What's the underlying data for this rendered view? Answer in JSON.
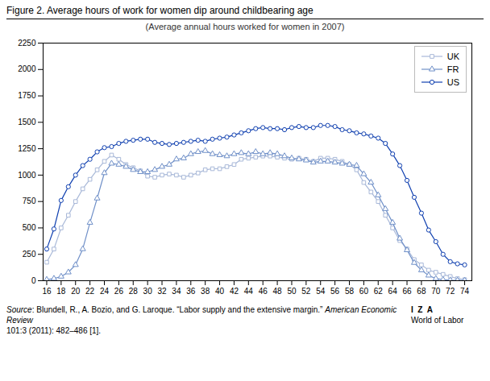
{
  "chart_data": {
    "type": "line",
    "title": "Figure 2. Average hours of work for women dip around childbearing age",
    "subtitle": "(Average annual hours worked for women in 2007)",
    "annotations": [
      "Source",
      ": Blundell, R., A. Bozio, and G. Laroque. “Labor supply and the extensive margin.” ",
      "American Economic Review",
      "101:3 (2011): 482–486 [1].",
      "I  Z  A",
      "World of Labor"
    ],
    "x": [
      16,
      17,
      18,
      19,
      20,
      21,
      22,
      23,
      24,
      25,
      26,
      27,
      28,
      29,
      30,
      31,
      32,
      33,
      34,
      35,
      36,
      37,
      38,
      39,
      40,
      41,
      42,
      43,
      44,
      45,
      46,
      47,
      48,
      49,
      50,
      51,
      52,
      53,
      54,
      55,
      56,
      57,
      58,
      59,
      60,
      61,
      62,
      63,
      64,
      65,
      66,
      67,
      68,
      69,
      70,
      71,
      72,
      73,
      74
    ],
    "series": [
      {
        "name": "UK",
        "color": "#a8b8d8",
        "marker": "square",
        "values": [
          175,
          300,
          500,
          620,
          750,
          870,
          960,
          1050,
          1130,
          1190,
          1150,
          1100,
          1070,
          1040,
          990,
          980,
          1000,
          1010,
          1000,
          980,
          1000,
          1020,
          1050,
          1060,
          1060,
          1080,
          1100,
          1150,
          1160,
          1170,
          1180,
          1180,
          1170,
          1160,
          1150,
          1160,
          1150,
          1130,
          1160,
          1160,
          1150,
          1130,
          1100,
          1050,
          930,
          840,
          750,
          620,
          500,
          380,
          300,
          200,
          150,
          100,
          80,
          60,
          40,
          20,
          10
        ]
      },
      {
        "name": "FR",
        "color": "#7090c8",
        "marker": "triangle",
        "values": [
          10,
          20,
          40,
          80,
          150,
          300,
          550,
          780,
          1020,
          1110,
          1100,
          1080,
          1050,
          1030,
          1030,
          1050,
          1080,
          1100,
          1150,
          1160,
          1200,
          1220,
          1230,
          1200,
          1190,
          1180,
          1200,
          1210,
          1200,
          1220,
          1200,
          1210,
          1200,
          1180,
          1160,
          1150,
          1140,
          1120,
          1130,
          1130,
          1120,
          1110,
          1100,
          1090,
          1010,
          930,
          810,
          680,
          550,
          400,
          290,
          170,
          100,
          50,
          20,
          10,
          5,
          3,
          2
        ]
      },
      {
        "name": "US",
        "color": "#1040b0",
        "marker": "circle",
        "values": [
          300,
          490,
          760,
          890,
          1000,
          1090,
          1150,
          1220,
          1260,
          1270,
          1300,
          1320,
          1330,
          1340,
          1340,
          1310,
          1300,
          1290,
          1300,
          1310,
          1320,
          1330,
          1320,
          1340,
          1350,
          1360,
          1380,
          1400,
          1420,
          1440,
          1450,
          1440,
          1440,
          1430,
          1450,
          1460,
          1450,
          1450,
          1470,
          1470,
          1460,
          1430,
          1420,
          1400,
          1390,
          1370,
          1350,
          1300,
          1200,
          1090,
          950,
          790,
          640,
          480,
          370,
          250,
          180,
          160,
          150
        ]
      }
    ],
    "xlim": [
      15.5,
      75
    ],
    "ylim": [
      0,
      2250
    ],
    "xticks": [
      16,
      18,
      20,
      22,
      24,
      26,
      28,
      30,
      32,
      34,
      36,
      38,
      40,
      42,
      44,
      46,
      48,
      50,
      52,
      54,
      56,
      58,
      60,
      62,
      64,
      66,
      68,
      70,
      72,
      74
    ],
    "yticks": [
      0,
      250,
      500,
      750,
      1000,
      1250,
      1500,
      1750,
      2000,
      2250
    ],
    "grid": false,
    "legend": "upper right"
  }
}
